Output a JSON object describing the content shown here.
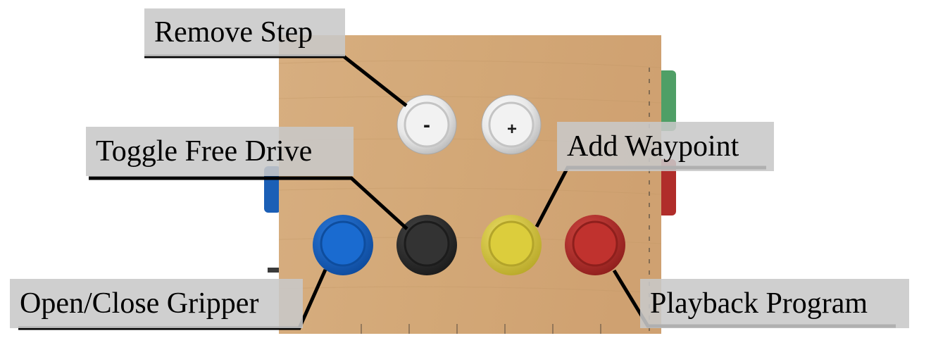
{
  "colors": {
    "board": "#d2a878",
    "board_edge": "#c39862",
    "blue": "#1565c8",
    "black": "#2e2e2e",
    "yellow": "#dccd3c",
    "red": "#be302c",
    "white": "#e6e6e6",
    "green": "#4a9a60",
    "label_bg": "#c8c8c8",
    "leader": "#000000"
  },
  "buttons": {
    "minus": {
      "symbol": "-",
      "icon": "minus-button-icon"
    },
    "plus": {
      "symbol": "+",
      "icon": "plus-button-icon"
    },
    "blue": {
      "icon": "blue-arcade-button-icon"
    },
    "black": {
      "icon": "black-arcade-button-icon"
    },
    "yellow": {
      "icon": "yellow-arcade-button-icon"
    },
    "red": {
      "icon": "red-arcade-button-icon"
    }
  },
  "labels": {
    "remove_step": "Remove Step",
    "toggle_free_drive": "Toggle Free Drive",
    "add_waypoint": "Add Waypoint",
    "open_close_gripper": "Open/Close Gripper",
    "playback_program": "Playback Program"
  }
}
